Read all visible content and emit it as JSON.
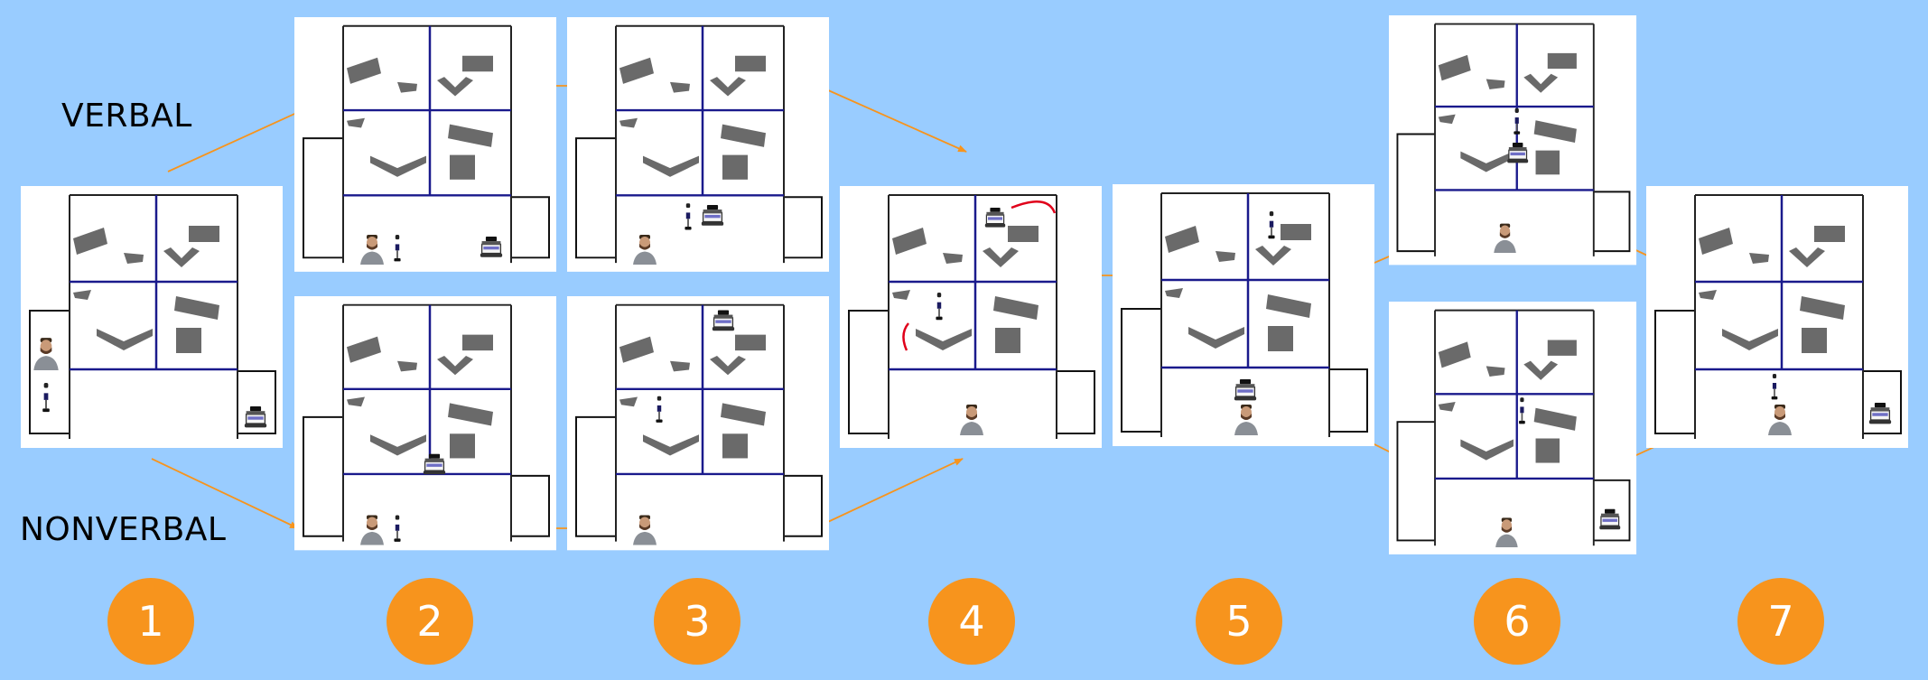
{
  "labels": {
    "verbal": "VERBAL",
    "nonverbal": "NONVERBAL"
  },
  "steps": [
    "1",
    "2",
    "3",
    "4",
    "5",
    "6",
    "7"
  ],
  "colors": {
    "background": "#99ccff",
    "accent": "#f7941d",
    "grid_line": "#1a1a8c",
    "block": "#666666",
    "path_mark": "#e0001a"
  },
  "icons": [
    "person-icon",
    "humanoid-robot-icon",
    "wheeled-robot-icon",
    "red-path-mark"
  ]
}
